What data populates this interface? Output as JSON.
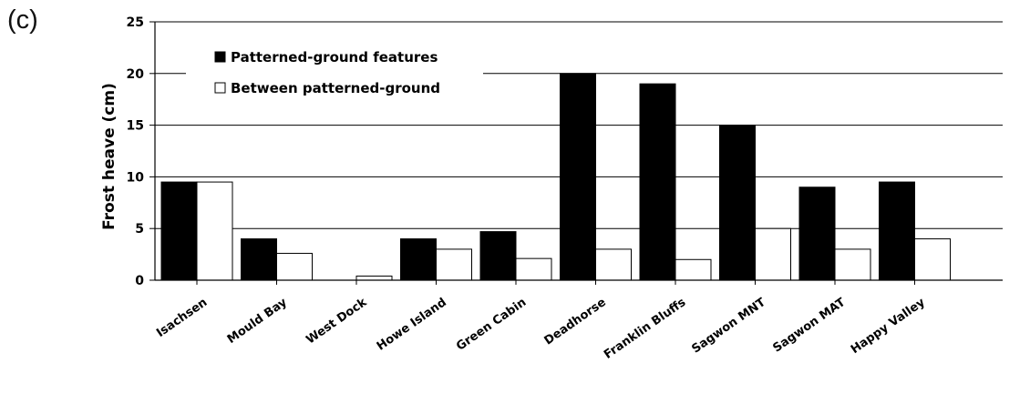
{
  "panel_label": "(c)",
  "colors": {
    "series1_fill": "#000000",
    "series2_fill": "#ffffff",
    "bar_stroke": "#000000",
    "grid": "#000000"
  },
  "chart_data": {
    "type": "bar",
    "title": "",
    "xlabel": "",
    "ylabel": "Frost heave (cm)",
    "ylim": [
      0,
      25
    ],
    "yticks": [
      0,
      5,
      10,
      15,
      20,
      25
    ],
    "grid": true,
    "legend_position": "top-left inside",
    "categories": [
      "Isachsen",
      "Mould Bay",
      "West Dock",
      "Howe Island",
      "Green Cabin",
      "Deadhorse",
      "Franklin Bluffs",
      "Sagwon MNT",
      "Sagwon MAT",
      "Happy Valley"
    ],
    "series": [
      {
        "name": "Patterned-ground features",
        "values": [
          9.5,
          4,
          0,
          4,
          4.7,
          20,
          19,
          15,
          9,
          9.5
        ]
      },
      {
        "name": "Between patterned-ground",
        "values": [
          9.5,
          2.6,
          0.4,
          3,
          2.1,
          3,
          2,
          5,
          3,
          4
        ]
      }
    ]
  }
}
